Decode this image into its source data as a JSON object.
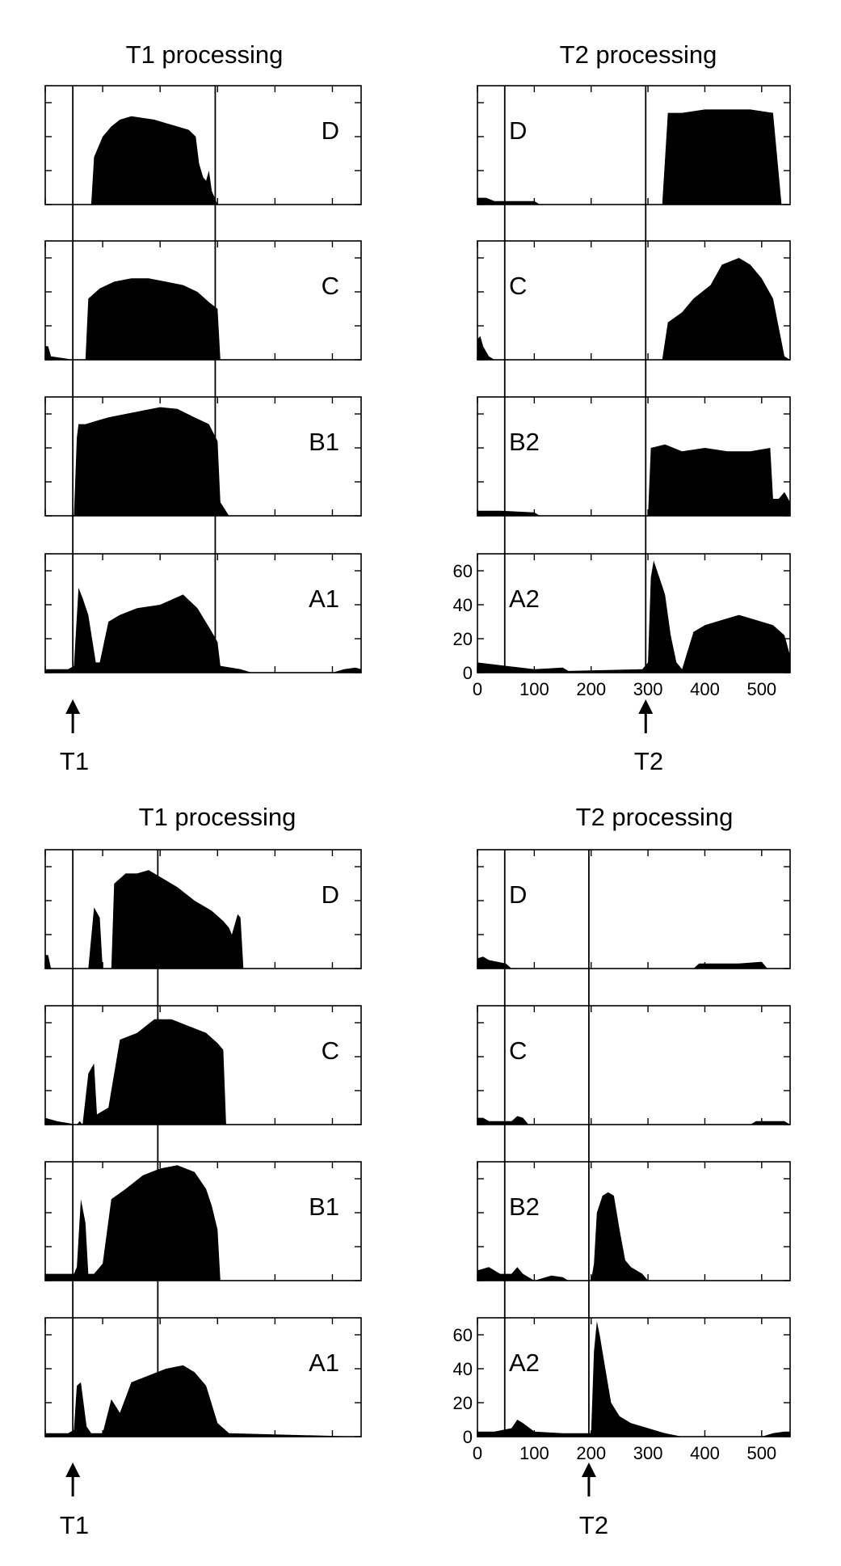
{
  "figure": {
    "sections": [
      {
        "marker_label": "T1",
        "columns": [
          {
            "title": "T1 processing",
            "panels": [
              {
                "label": "D"
              },
              {
                "label": "C"
              },
              {
                "label": "B1"
              },
              {
                "label": "A1"
              }
            ]
          },
          {
            "title": "T2 processing",
            "marker_label": "T2",
            "panels": [
              {
                "label": "D"
              },
              {
                "label": "C"
              },
              {
                "label": "B2"
              },
              {
                "label": "A2"
              }
            ]
          }
        ]
      },
      {
        "marker_label": "T1",
        "columns": [
          {
            "title": "T1 processing",
            "panels": [
              {
                "label": "D"
              },
              {
                "label": "C"
              },
              {
                "label": "B1"
              },
              {
                "label": "A1"
              }
            ]
          },
          {
            "title": "T2 processing",
            "marker_label": "T2",
            "panels": [
              {
                "label": "D"
              },
              {
                "label": "C"
              },
              {
                "label": "B2"
              },
              {
                "label": "A2"
              }
            ]
          }
        ]
      }
    ]
  },
  "chart_data": [
    {
      "type": "area",
      "x_ticks": [
        0,
        100,
        200,
        300,
        400,
        500
      ],
      "y_ticks": [
        0,
        20,
        40,
        60
      ],
      "xlim": [
        0,
        550
      ],
      "ylim": [
        0,
        70
      ],
      "grid": false,
      "vlines_x": [
        48,
        296
      ],
      "panels": [
        {
          "label": "D",
          "x": [
            0,
            80,
            85,
            100,
            115,
            130,
            150,
            170,
            190,
            210,
            230,
            250,
            262,
            268,
            275,
            280,
            285,
            290,
            300,
            310,
            330,
            550
          ],
          "y": [
            0,
            0,
            28,
            40,
            46,
            50,
            52,
            51,
            50,
            48,
            46,
            44,
            40,
            24,
            16,
            14,
            20,
            8,
            0,
            0,
            0,
            0
          ]
        },
        {
          "label": "C",
          "x": [
            0,
            5,
            10,
            50,
            70,
            75,
            95,
            120,
            150,
            180,
            210,
            240,
            265,
            285,
            300,
            305,
            550
          ],
          "y": [
            8,
            8,
            2,
            0,
            0,
            36,
            42,
            46,
            48,
            48,
            46,
            44,
            40,
            34,
            30,
            0,
            0
          ]
        },
        {
          "label": "B1",
          "x": [
            0,
            50,
            55,
            58,
            70,
            90,
            110,
            140,
            170,
            200,
            230,
            260,
            285,
            300,
            305,
            320,
            550
          ],
          "y": [
            0,
            0,
            46,
            54,
            54,
            56,
            58,
            60,
            62,
            64,
            63,
            58,
            54,
            44,
            8,
            0,
            0
          ]
        },
        {
          "label": "A1",
          "x": [
            0,
            40,
            50,
            58,
            65,
            75,
            88,
            95,
            110,
            130,
            160,
            200,
            240,
            265,
            290,
            300,
            305,
            340,
            360,
            500,
            520,
            540,
            550
          ],
          "y": [
            2,
            2,
            4,
            50,
            44,
            34,
            6,
            6,
            30,
            34,
            38,
            40,
            46,
            38,
            24,
            18,
            4,
            2,
            0,
            0,
            2,
            3,
            2
          ]
        }
      ]
    },
    {
      "type": "area",
      "x_ticks": [
        0,
        100,
        200,
        300,
        400,
        500
      ],
      "y_ticks": [
        0,
        20,
        40,
        60
      ],
      "xlim": [
        0,
        550
      ],
      "ylim": [
        0,
        70
      ],
      "grid": false,
      "vlines_x": [
        48,
        296
      ],
      "panels": [
        {
          "label": "D",
          "x": [
            0,
            15,
            30,
            100,
            110,
            300,
            325,
            335,
            360,
            400,
            440,
            480,
            520,
            535,
            550
          ],
          "y": [
            4,
            4,
            2,
            2,
            0,
            0,
            0,
            54,
            54,
            56,
            56,
            56,
            54,
            0,
            0
          ]
        },
        {
          "label": "C",
          "x": [
            0,
            5,
            10,
            20,
            30,
            325,
            335,
            360,
            380,
            410,
            430,
            460,
            480,
            500,
            520,
            540,
            550
          ],
          "y": [
            12,
            14,
            8,
            2,
            0,
            0,
            22,
            28,
            36,
            44,
            56,
            60,
            56,
            48,
            36,
            2,
            0
          ]
        },
        {
          "label": "B2",
          "x": [
            0,
            40,
            100,
            110,
            300,
            305,
            330,
            360,
            400,
            440,
            480,
            515,
            520,
            530,
            540,
            550
          ],
          "y": [
            3,
            3,
            2,
            0,
            0,
            40,
            42,
            38,
            40,
            38,
            38,
            40,
            10,
            10,
            14,
            8
          ]
        },
        {
          "label": "A2",
          "x": [
            0,
            50,
            100,
            150,
            160,
            290,
            300,
            305,
            310,
            320,
            330,
            340,
            350,
            360,
            380,
            400,
            420,
            440,
            460,
            480,
            500,
            520,
            540,
            550
          ],
          "y": [
            6,
            4,
            2,
            3,
            1,
            2,
            6,
            56,
            66,
            56,
            46,
            22,
            6,
            2,
            24,
            28,
            30,
            32,
            34,
            32,
            30,
            28,
            22,
            10
          ]
        }
      ]
    },
    {
      "type": "area",
      "x_ticks": [
        0,
        100,
        200,
        300,
        400,
        500
      ],
      "y_ticks": [
        0,
        20,
        40,
        60
      ],
      "xlim": [
        0,
        550
      ],
      "ylim": [
        0,
        70
      ],
      "grid": false,
      "vlines_x": [
        48,
        196
      ],
      "panels": [
        {
          "label": "D",
          "x": [
            0,
            5,
            10,
            70,
            75,
            85,
            95,
            100,
            115,
            120,
            140,
            160,
            180,
            200,
            230,
            260,
            290,
            310,
            320,
            325,
            335,
            340,
            345,
            350,
            550
          ],
          "y": [
            8,
            8,
            0,
            0,
            0,
            36,
            30,
            0,
            0,
            50,
            56,
            56,
            58,
            54,
            48,
            40,
            34,
            28,
            24,
            20,
            32,
            30,
            0,
            0,
            0
          ]
        },
        {
          "label": "C",
          "x": [
            0,
            20,
            55,
            60,
            65,
            75,
            85,
            90,
            110,
            130,
            160,
            190,
            220,
            250,
            280,
            300,
            310,
            315,
            550
          ],
          "y": [
            4,
            2,
            0,
            2,
            0,
            30,
            36,
            6,
            10,
            50,
            54,
            62,
            62,
            58,
            54,
            48,
            44,
            0,
            0
          ]
        },
        {
          "label": "B1",
          "x": [
            0,
            50,
            55,
            62,
            70,
            75,
            85,
            100,
            115,
            140,
            170,
            200,
            230,
            260,
            280,
            290,
            300,
            305,
            550
          ],
          "y": [
            4,
            4,
            8,
            48,
            34,
            4,
            4,
            10,
            48,
            54,
            62,
            66,
            68,
            64,
            54,
            44,
            30,
            0,
            0
          ]
        },
        {
          "label": "A1",
          "x": [
            0,
            40,
            50,
            55,
            62,
            72,
            80,
            90,
            100,
            115,
            130,
            150,
            180,
            210,
            240,
            260,
            280,
            300,
            320,
            550
          ],
          "y": [
            2,
            2,
            4,
            30,
            32,
            6,
            2,
            2,
            2,
            22,
            14,
            32,
            36,
            40,
            42,
            38,
            30,
            8,
            2,
            0
          ]
        }
      ]
    },
    {
      "type": "area",
      "x_ticks": [
        0,
        100,
        200,
        300,
        400,
        500
      ],
      "y_ticks": [
        0,
        20,
        40,
        60
      ],
      "xlim": [
        0,
        550
      ],
      "ylim": [
        0,
        70
      ],
      "grid": false,
      "vlines_x": [
        48,
        196
      ],
      "panels": [
        {
          "label": "D",
          "x": [
            0,
            10,
            20,
            50,
            60,
            380,
            390,
            420,
            460,
            500,
            510,
            550
          ],
          "y": [
            6,
            7,
            5,
            3,
            0,
            0,
            3,
            3,
            3,
            4,
            0,
            0
          ]
        },
        {
          "label": "C",
          "x": [
            0,
            10,
            20,
            60,
            70,
            80,
            90,
            480,
            490,
            540,
            550
          ],
          "y": [
            4,
            4,
            2,
            2,
            5,
            4,
            0,
            0,
            2,
            2,
            0
          ]
        },
        {
          "label": "B2",
          "x": [
            0,
            20,
            40,
            60,
            70,
            80,
            100,
            130,
            150,
            160,
            200,
            205,
            210,
            220,
            230,
            240,
            250,
            260,
            270,
            290,
            300,
            550
          ],
          "y": [
            6,
            8,
            4,
            4,
            8,
            4,
            0,
            3,
            2,
            0,
            0,
            10,
            40,
            50,
            52,
            50,
            30,
            12,
            8,
            4,
            0,
            0
          ]
        },
        {
          "label": "A2",
          "x": [
            0,
            30,
            60,
            70,
            80,
            100,
            150,
            200,
            205,
            210,
            215,
            225,
            235,
            250,
            270,
            290,
            310,
            330,
            360,
            500,
            520,
            540,
            550
          ],
          "y": [
            3,
            3,
            5,
            10,
            8,
            3,
            2,
            2,
            50,
            68,
            60,
            40,
            20,
            12,
            8,
            6,
            4,
            2,
            0,
            0,
            2,
            3,
            3
          ]
        }
      ]
    }
  ]
}
